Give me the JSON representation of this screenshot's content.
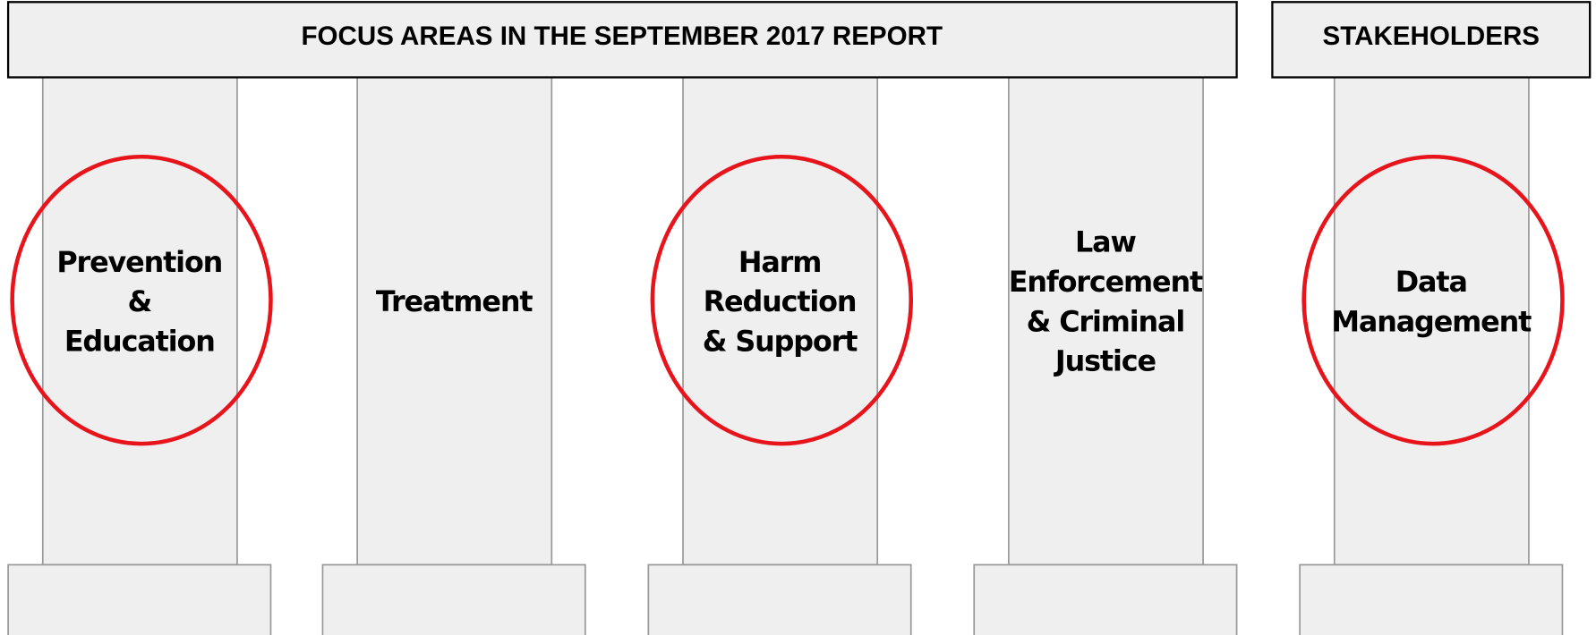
{
  "header": {
    "title": "FOCUS AREAS IN THE SEPTEMBER 2017 REPORT",
    "side_title": "STAKEHOLDERS"
  },
  "pillars": [
    {
      "lines": [
        "Prevention",
        "&",
        "Education"
      ],
      "circled": true
    },
    {
      "lines": [
        "Treatment"
      ],
      "circled": false
    },
    {
      "lines": [
        "Harm",
        "Reduction",
        "& Support"
      ],
      "circled": true
    },
    {
      "lines": [
        "Law",
        "Enforcement",
        "& Criminal",
        "Justice"
      ],
      "circled": false
    },
    {
      "lines": [
        "Data",
        "Management"
      ],
      "circled": true
    }
  ]
}
